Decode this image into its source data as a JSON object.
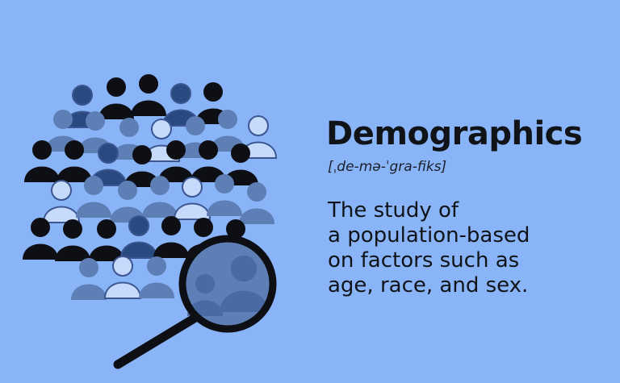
{
  "title": "Demographics",
  "pronunciation": "[ˌde-mə-ˈgra-fiks]",
  "definition_lines": [
    "The study of",
    "a population-based",
    "on factors such as",
    "age, race, and sex."
  ],
  "colors": {
    "background": "#8ab4f8",
    "person_black": "#0d0f14",
    "person_navy": "#284a80",
    "person_mid": "#5e7fb5",
    "person_light": "#c6dafc",
    "magnifier": "#0d0f14"
  },
  "icons": [
    "crowd-illustration",
    "magnifying-glass-icon"
  ]
}
